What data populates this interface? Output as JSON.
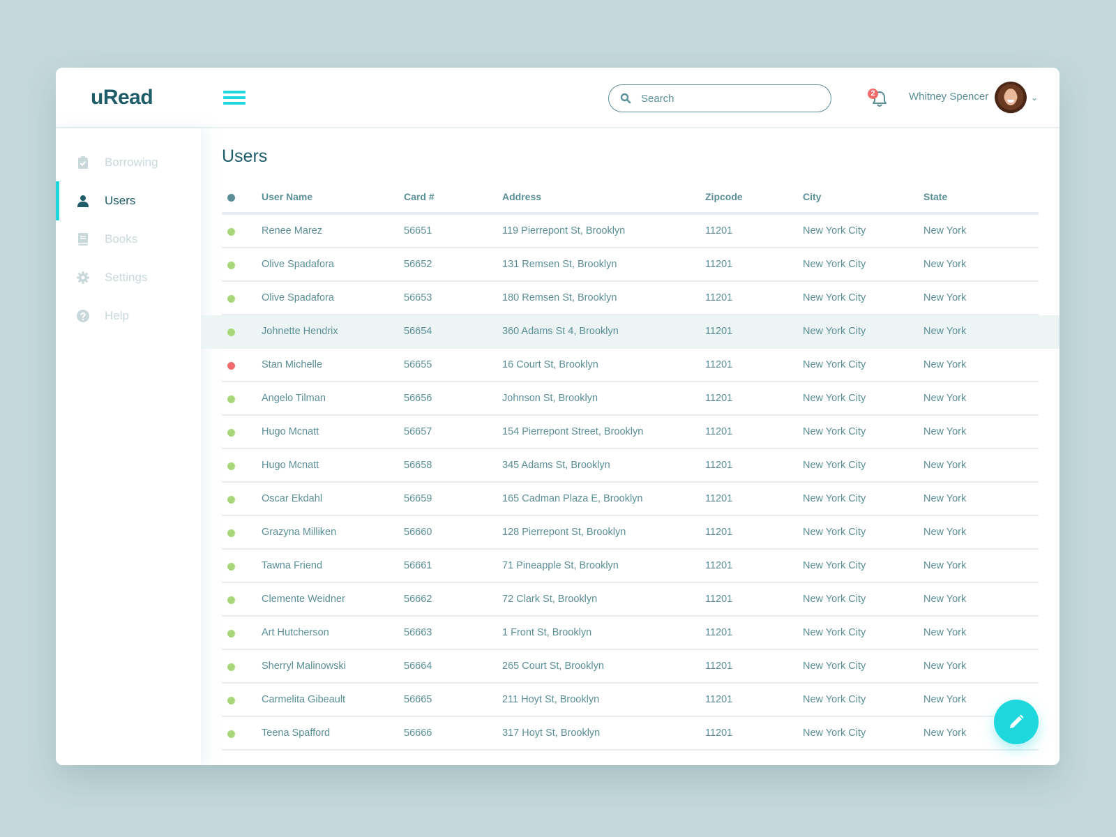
{
  "app": {
    "logo": "uRead"
  },
  "header": {
    "search_placeholder": "Search",
    "notifications_count": "2",
    "user_name": "Whitney Spencer"
  },
  "sidebar": {
    "items": [
      {
        "label": "Borrowing",
        "icon": "clipboard-check-icon",
        "active": false
      },
      {
        "label": "Users",
        "icon": "user-icon",
        "active": true
      },
      {
        "label": "Books",
        "icon": "book-icon",
        "active": false
      },
      {
        "label": "Settings",
        "icon": "gear-icon",
        "active": false
      },
      {
        "label": "Help",
        "icon": "question-circle-icon",
        "active": false
      }
    ]
  },
  "main": {
    "title": "Users",
    "columns": [
      "User Name",
      "Card #",
      "Address",
      "Zipcode",
      "City",
      "State"
    ],
    "rows": [
      {
        "status": "active",
        "name": "Renee Marez",
        "card": "56651",
        "address": "119 Pierrepont St, Brooklyn",
        "zip": "11201",
        "city": "New York City",
        "state": "New York"
      },
      {
        "status": "active",
        "name": "Olive Spadafora",
        "card": "56652",
        "address": "131 Remsen St, Brooklyn",
        "zip": "11201",
        "city": "New York City",
        "state": "New York"
      },
      {
        "status": "active",
        "name": "Olive Spadafora",
        "card": "56653",
        "address": "180 Remsen St, Brooklyn",
        "zip": "11201",
        "city": "New York City",
        "state": "New York"
      },
      {
        "status": "active",
        "name": "Johnette Hendrix",
        "card": "56654",
        "address": "360 Adams St 4, Brooklyn",
        "zip": "11201",
        "city": "New York City",
        "state": "New York",
        "highlighted": true
      },
      {
        "status": "inactive",
        "name": "Stan Michelle",
        "card": "56655",
        "address": "16 Court St, Brooklyn",
        "zip": "11201",
        "city": "New York City",
        "state": "New York"
      },
      {
        "status": "active",
        "name": "Angelo Tilman",
        "card": "56656",
        "address": "Johnson St, Brooklyn",
        "zip": "11201",
        "city": "New York City",
        "state": "New York"
      },
      {
        "status": "active",
        "name": "Hugo Mcnatt",
        "card": "56657",
        "address": "154 Pierrepont Street, Brooklyn",
        "zip": "11201",
        "city": "New York City",
        "state": "New York"
      },
      {
        "status": "active",
        "name": "Hugo Mcnatt",
        "card": "56658",
        "address": "345 Adams St, Brooklyn",
        "zip": "11201",
        "city": "New York City",
        "state": "New York"
      },
      {
        "status": "active",
        "name": "Oscar Ekdahl",
        "card": "56659",
        "address": "165 Cadman Plaza E, Brooklyn",
        "zip": "11201",
        "city": "New York City",
        "state": "New York"
      },
      {
        "status": "active",
        "name": "Grazyna Milliken",
        "card": "56660",
        "address": "128 Pierrepont St, Brooklyn",
        "zip": "11201",
        "city": "New York City",
        "state": "New York"
      },
      {
        "status": "active",
        "name": "Tawna Friend",
        "card": "56661",
        "address": "71 Pineapple St, Brooklyn",
        "zip": "11201",
        "city": "New York City",
        "state": "New York"
      },
      {
        "status": "active",
        "name": "Clemente Weidner",
        "card": "56662",
        "address": "72 Clark St, Brooklyn",
        "zip": "11201",
        "city": "New York City",
        "state": "New York"
      },
      {
        "status": "active",
        "name": "Art Hutcherson",
        "card": "56663",
        "address": "1 Front St, Brooklyn",
        "zip": "11201",
        "city": "New York City",
        "state": "New York"
      },
      {
        "status": "active",
        "name": "Sherryl Malinowski",
        "card": "56664",
        "address": "265 Court St, Brooklyn",
        "zip": "11201",
        "city": "New York City",
        "state": "New York"
      },
      {
        "status": "active",
        "name": "Carmelita Gibeault",
        "card": "56665",
        "address": "211 Hoyt St, Brooklyn",
        "zip": "11201",
        "city": "New York City",
        "state": "New York"
      },
      {
        "status": "active",
        "name": "Teena Spafford",
        "card": "56666",
        "address": "317 Hoyt St, Brooklyn",
        "zip": "11201",
        "city": "New York City",
        "state": "New York"
      }
    ]
  },
  "colors": {
    "accent": "#1fd8dd",
    "brand": "#1e5c68",
    "text": "#5a8f97",
    "status_active": "#a8d77a",
    "status_inactive": "#f06b6b",
    "header_dot": "#5a8f97"
  },
  "fab": {
    "icon": "pencil-icon"
  }
}
